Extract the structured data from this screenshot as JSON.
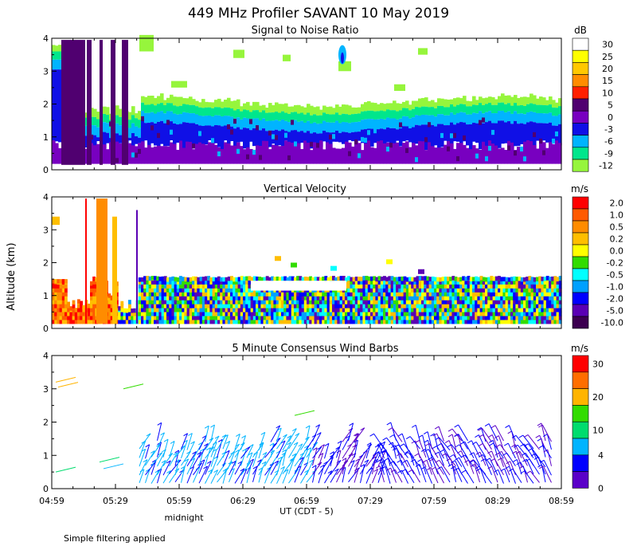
{
  "figure": {
    "title": "449 MHz Profiler SAVANT 10 May 2019",
    "ylabel": "Altitude (km)",
    "xlabel": "UT  (CDT - 5)",
    "midnight_label": "midnight",
    "footnote": "Simple filtering applied",
    "time_ticks": [
      "04:59",
      "05:29",
      "05:59",
      "06:29",
      "06:59",
      "07:29",
      "07:59",
      "08:29",
      "08:59"
    ],
    "altitude_ticks": [
      "0",
      "1",
      "2",
      "3",
      "4"
    ]
  },
  "chart_data": [
    {
      "type": "heatmap",
      "title": "Signal to Noise Ratio",
      "x_range": [
        "04:59",
        "08:59"
      ],
      "ylim": [
        0,
        4
      ],
      "colorbar": {
        "unit": "dB",
        "labels": [
          "30",
          "25",
          "20",
          "15",
          "10",
          "5",
          "0",
          "-3",
          "-6",
          "-9",
          "-12"
        ],
        "colors": [
          "#ffffff",
          "#ffff00",
          "#ffc800",
          "#ff8c00",
          "#ff2000",
          "#500070",
          "#7800c0",
          "#1010e6",
          "#00b4ff",
          "#00e68c",
          "#96f53c"
        ]
      },
      "layers": [
        {
          "level": "-12",
          "from_km": 1.6,
          "to_km": 1.95
        },
        {
          "level": "-9",
          "from_km": 1.45,
          "to_km": 1.65
        },
        {
          "level": "-6",
          "from_km": 1.2,
          "to_km": 1.5
        },
        {
          "level": "-3",
          "from_km": 0.55,
          "to_km": 1.3
        },
        {
          "level": "0",
          "from_km": 0.15,
          "to_km": 0.7
        }
      ]
    },
    {
      "type": "heatmap",
      "title": "Vertical Velocity",
      "x_range": [
        "04:59",
        "08:59"
      ],
      "ylim": [
        0,
        4
      ],
      "colorbar": {
        "unit": "m/s",
        "labels": [
          "2.0",
          "1.0",
          "0.5",
          "0.2",
          "0.0",
          "-0.2",
          "-0.5",
          "-1.0",
          "-2.0",
          "-5.0",
          "-10.0"
        ],
        "colors": [
          "#ff0000",
          "#ff5a00",
          "#ff8c00",
          "#ffbe00",
          "#ffff00",
          "#32dc00",
          "#00ffff",
          "#00a0ff",
          "#0000ff",
          "#5a00b4",
          "#3c0050"
        ]
      }
    },
    {
      "type": "scatter",
      "title": "5 Minute Consensus Wind Barbs",
      "x_range": [
        "04:59",
        "08:59"
      ],
      "ylim": [
        0,
        4
      ],
      "colorbar": {
        "unit": "m/s",
        "labels": [
          "30",
          "20",
          "10",
          "4",
          "0"
        ],
        "colors": [
          "#ff0000",
          "#ff6e00",
          "#ffb400",
          "#32dc00",
          "#00dc6e",
          "#00b4ff",
          "#0000ff",
          "#5a00c8"
        ]
      }
    }
  ]
}
